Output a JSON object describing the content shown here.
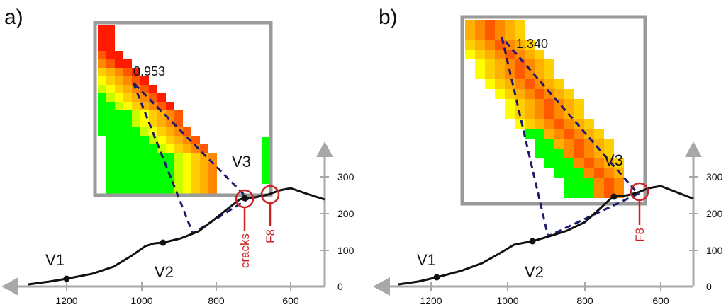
{
  "panels": [
    {
      "letter": "a)",
      "inset_value": "0.953",
      "vertex_labels": [
        "V1",
        "V2",
        "V3"
      ],
      "markers": [
        "cracks",
        "F8"
      ],
      "x_ticks": [
        "1200",
        "1000",
        "800",
        "600"
      ],
      "y_ticks": [
        "0",
        "100",
        "200",
        "300"
      ]
    },
    {
      "letter": "b)",
      "inset_value": "1.340",
      "vertex_labels": [
        "V1",
        "V2",
        "V3"
      ],
      "markers": [
        "F8"
      ],
      "x_ticks": [
        "1200",
        "1000",
        "800",
        "600"
      ],
      "y_ticks": [
        "0",
        "100",
        "200",
        "300"
      ]
    }
  ],
  "colors": {
    "profile": "#111111",
    "marker": "#cc2222",
    "dashed": "#1a1a6e",
    "axis": "#a8a8a8",
    "frame": "#9a9a9a"
  },
  "icons": [
    "arrow-left-icon",
    "arrow-up-icon",
    "circle-marker-icon"
  ]
}
